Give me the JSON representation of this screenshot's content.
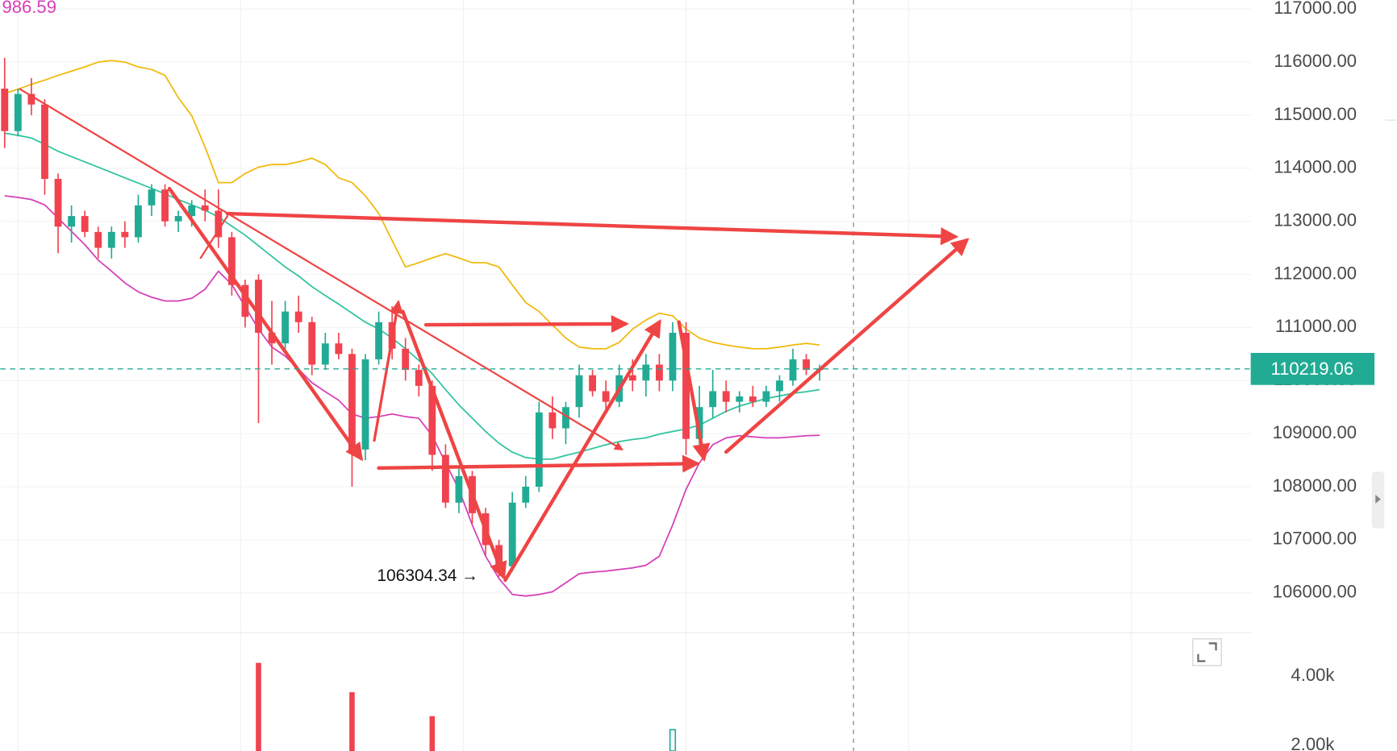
{
  "chart_data": {
    "type": "candlestick",
    "corner_value": "986.59",
    "low_annotation": "106304.34 →",
    "up_color": "#22ab94",
    "down_color": "#f0434f",
    "ylim": [
      105250,
      117170
    ],
    "yticks": [
      {
        "value": 106000,
        "label": "106000.00"
      },
      {
        "value": 107000,
        "label": "107000.00"
      },
      {
        "value": 108000,
        "label": "108000.00"
      },
      {
        "value": 109000,
        "label": "109000.00"
      },
      {
        "value": 110000,
        "label": "110000.00"
      },
      {
        "value": 111000,
        "label": "111000.00"
      },
      {
        "value": 112000,
        "label": "112000.00"
      },
      {
        "value": 113000,
        "label": "113000.00"
      },
      {
        "value": 114000,
        "label": "114000.00"
      },
      {
        "value": 115000,
        "label": "115000.00"
      },
      {
        "value": 116000,
        "label": "116000.00"
      },
      {
        "value": 117000,
        "label": "117000.00"
      }
    ],
    "grid": true,
    "last_price": 110219.06,
    "open": [
      115500,
      114700,
      115400,
      115200,
      113800,
      112900,
      113100,
      112800,
      112500,
      112800,
      112700,
      113300,
      113600,
      113000,
      113100,
      113300,
      113200,
      112700,
      111800,
      111900,
      110900,
      110700,
      111300,
      111100,
      110300,
      110700,
      110500,
      108700,
      110400,
      111100,
      110600,
      110200,
      109900,
      108600,
      107700,
      108200,
      107500,
      106900,
      106500,
      107700,
      108000,
      109400,
      109100,
      109500,
      110100,
      109800,
      109600,
      110100,
      110000,
      110300,
      110000,
      110900,
      108900,
      109500,
      109800,
      109600,
      109700,
      109600,
      109800,
      110000,
      110400,
      110200
    ],
    "high": [
      116080,
      115500,
      115700,
      115300,
      113900,
      113300,
      113200,
      112900,
      112900,
      113000,
      113500,
      113700,
      113700,
      113200,
      113400,
      113600,
      113600,
      112800,
      111900,
      112000,
      111500,
      111500,
      111600,
      111200,
      110900,
      110900,
      110600,
      110500,
      111300,
      111400,
      110800,
      110300,
      110000,
      108800,
      108400,
      108300,
      107600,
      107000,
      107900,
      108200,
      109600,
      109700,
      109600,
      110300,
      110200,
      110000,
      110300,
      110400,
      110500,
      110500,
      111100,
      111100,
      109900,
      110200,
      110000,
      109800,
      109900,
      109900,
      110100,
      110600,
      110500,
      110300
    ],
    "low": [
      114380,
      114600,
      115000,
      113500,
      112400,
      112600,
      112700,
      112300,
      112300,
      112500,
      112600,
      113100,
      112900,
      112800,
      112900,
      113000,
      112500,
      111600,
      111000,
      109200,
      110300,
      110500,
      110900,
      110100,
      110200,
      110400,
      108000,
      108500,
      110300,
      110400,
      110000,
      109700,
      108300,
      107600,
      107500,
      107300,
      106700,
      106304.34,
      106400,
      107600,
      107900,
      108900,
      108800,
      109300,
      109700,
      109400,
      109500,
      109800,
      109700,
      109800,
      109800,
      108600,
      108800,
      109300,
      109400,
      109400,
      109500,
      109500,
      109600,
      109900,
      110100,
      110000
    ],
    "close": [
      114700,
      115400,
      115200,
      113800,
      112900,
      113100,
      112800,
      112500,
      112800,
      112700,
      113300,
      113600,
      113000,
      113100,
      113300,
      113200,
      112700,
      111800,
      111200,
      110900,
      110700,
      111300,
      111100,
      110300,
      110700,
      110500,
      108700,
      110400,
      111100,
      110600,
      110200,
      109900,
      108600,
      107700,
      108200,
      107500,
      106900,
      106500,
      107700,
      108000,
      109400,
      109100,
      109500,
      110100,
      109800,
      109600,
      110100,
      110000,
      110300,
      110000,
      110900,
      108900,
      109500,
      109800,
      109600,
      109700,
      109600,
      109800,
      110000,
      110400,
      110200,
      110219.06
    ],
    "lines": [
      {
        "color": "#f0b90b",
        "values": [
          115410,
          115490,
          115580,
          115660,
          115750,
          115830,
          115910,
          116000,
          116030,
          116000,
          115910,
          115860,
          115750,
          115330,
          114990,
          114400,
          113730,
          113730,
          113900,
          114020,
          114070,
          114070,
          114120,
          114190,
          114070,
          113820,
          113730,
          113480,
          113150,
          112640,
          112140,
          112220,
          112310,
          112390,
          112310,
          112220,
          112220,
          112140,
          111800,
          111470,
          111300,
          111050,
          110800,
          110630,
          110600,
          110600,
          110720,
          110970,
          111140,
          111270,
          111220,
          110970,
          110800,
          110720,
          110670,
          110630,
          110600,
          110600,
          110630,
          110670,
          110700,
          110670
        ]
      },
      {
        "color": "#2ec4a0",
        "values": [
          114660,
          114620,
          114570,
          114450,
          114320,
          114220,
          114120,
          114020,
          113920,
          113820,
          113720,
          113620,
          113520,
          113410,
          113310,
          113210,
          113080,
          112910,
          112740,
          112540,
          112340,
          112140,
          111970,
          111770,
          111600,
          111440,
          111270,
          111100,
          110970,
          110800,
          110600,
          110380,
          110130,
          109830,
          109540,
          109290,
          109040,
          108820,
          108650,
          108550,
          108520,
          108520,
          108590,
          108650,
          108720,
          108790,
          108850,
          108890,
          108920,
          108990,
          109040,
          109090,
          109160,
          109290,
          109420,
          109520,
          109590,
          109660,
          109710,
          109760,
          109790,
          109830
        ]
      },
      {
        "color": "#d63fb8",
        "values": [
          113480,
          113450,
          113410,
          113310,
          113060,
          112810,
          112560,
          112270,
          112060,
          111840,
          111670,
          111570,
          111500,
          111500,
          111550,
          111720,
          112060,
          111810,
          111390,
          110970,
          110630,
          110460,
          110210,
          109960,
          109790,
          109630,
          109370,
          109290,
          109320,
          109370,
          109320,
          109290,
          108960,
          108450,
          107950,
          107280,
          106690,
          106270,
          105970,
          105940,
          105970,
          106020,
          106190,
          106360,
          106390,
          106410,
          106440,
          106470,
          106520,
          106690,
          107280,
          107950,
          108450,
          108790,
          108920,
          108960,
          108940,
          108920,
          108920,
          108940,
          108960,
          108970
        ]
      }
    ],
    "volume": {
      "ylim": [
        1846,
        5256
      ],
      "yticks": [
        {
          "value": 2000,
          "label": "2.00k"
        },
        {
          "value": 4000,
          "label": "4.00k"
        }
      ],
      "values": [
        null,
        null,
        null,
        null,
        null,
        null,
        null,
        null,
        null,
        null,
        null,
        null,
        null,
        null,
        null,
        null,
        null,
        null,
        null,
        4385,
        null,
        null,
        null,
        null,
        null,
        null,
        3540,
        null,
        null,
        null,
        null,
        null,
        2850,
        null,
        null,
        null,
        null,
        null,
        null,
        null,
        null,
        null,
        null,
        null,
        null,
        null,
        null,
        null,
        null,
        null,
        2460,
        null,
        null,
        null,
        null,
        null,
        null,
        null,
        null,
        null,
        null,
        null
      ]
    }
  }
}
